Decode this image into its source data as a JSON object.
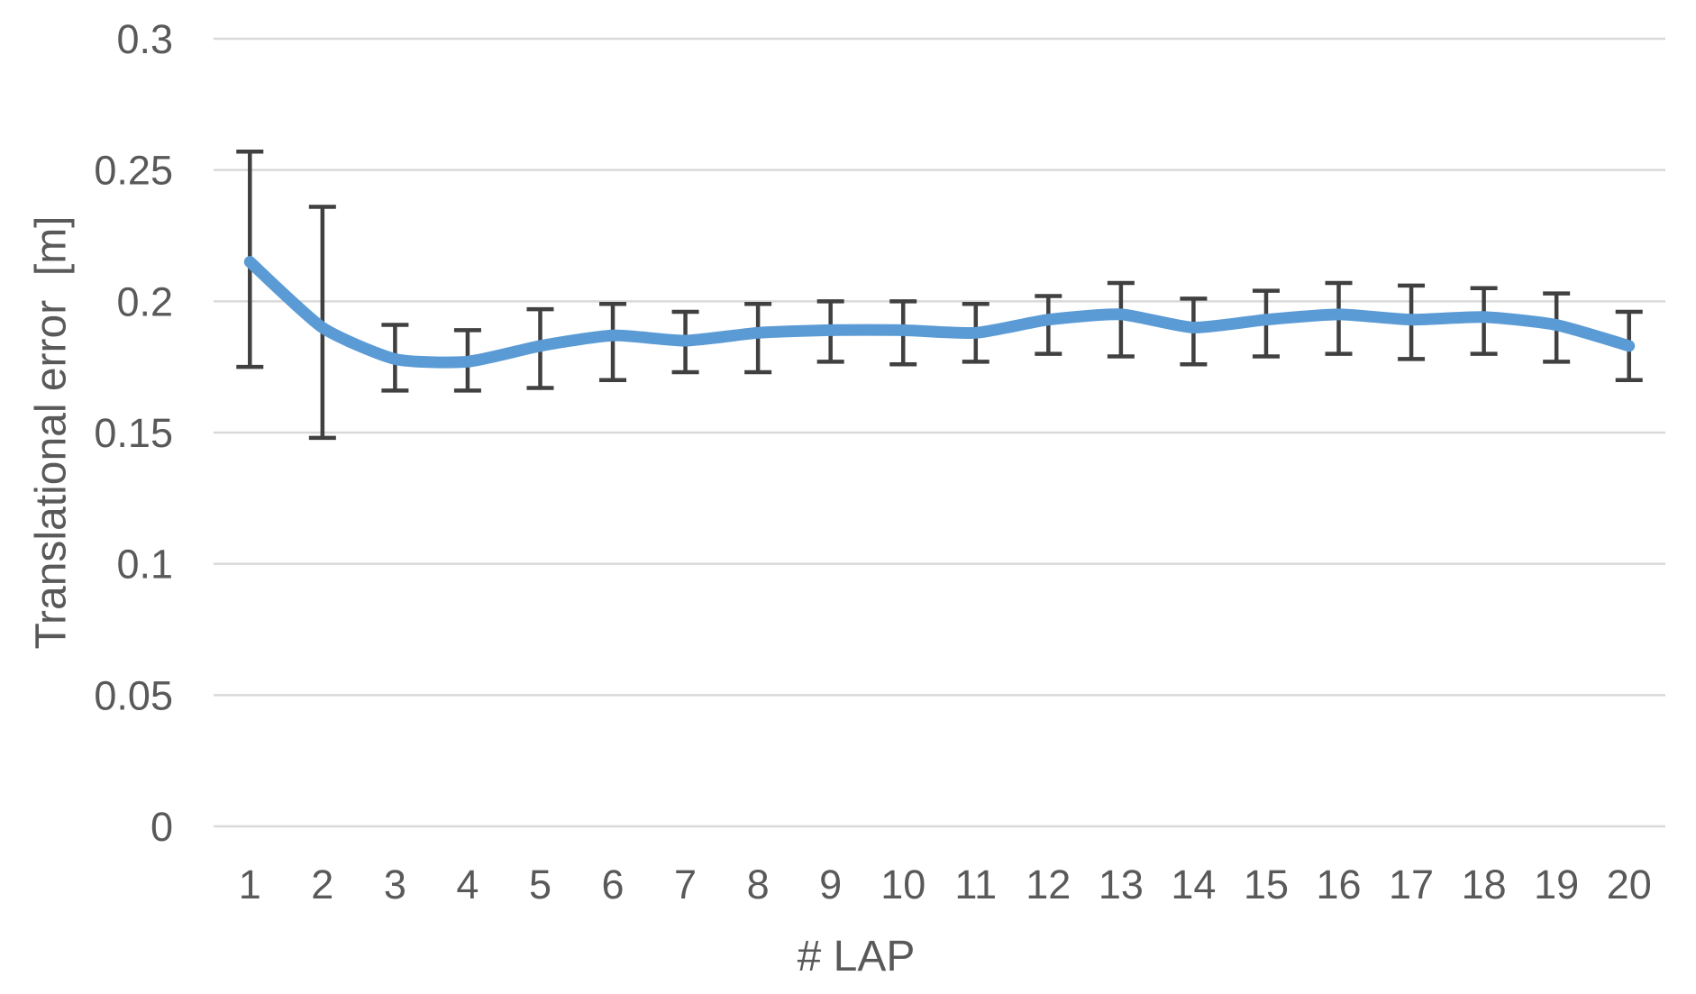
{
  "chart_data": {
    "type": "line",
    "title": "",
    "xlabel": "# LAP",
    "ylabel": "Translational error  [m]",
    "x_categories": [
      1,
      2,
      3,
      4,
      5,
      6,
      7,
      8,
      9,
      10,
      11,
      12,
      13,
      14,
      15,
      16,
      17,
      18,
      19,
      20
    ],
    "series": {
      "values": [
        0.215,
        0.19,
        0.178,
        0.177,
        0.183,
        0.187,
        0.185,
        0.188,
        0.189,
        0.189,
        0.188,
        0.193,
        0.195,
        0.19,
        0.193,
        0.195,
        0.193,
        0.194,
        0.191,
        0.183
      ],
      "error_low": [
        0.175,
        0.148,
        0.166,
        0.166,
        0.167,
        0.17,
        0.173,
        0.173,
        0.177,
        0.176,
        0.177,
        0.18,
        0.179,
        0.176,
        0.179,
        0.18,
        0.178,
        0.18,
        0.177,
        0.17
      ],
      "error_high": [
        0.257,
        0.236,
        0.191,
        0.189,
        0.197,
        0.199,
        0.196,
        0.199,
        0.2,
        0.2,
        0.199,
        0.202,
        0.207,
        0.201,
        0.204,
        0.207,
        0.206,
        0.205,
        0.203,
        0.196
      ]
    },
    "ylim": [
      0,
      0.3
    ],
    "yticks": [
      0,
      0.05,
      0.1,
      0.15,
      0.2,
      0.25,
      0.3
    ],
    "ytick_labels": [
      "0",
      "0.05",
      "0.1",
      "0.15",
      "0.2",
      "0.25",
      "0.3"
    ],
    "grid": "horizontal",
    "legend": "none",
    "line_smoothed": true,
    "colors": {
      "line": "#5B9BD5",
      "error_bar": "#404040",
      "gridline": "#D9D9D9",
      "text": "#595959",
      "background": "#FFFFFF"
    }
  }
}
